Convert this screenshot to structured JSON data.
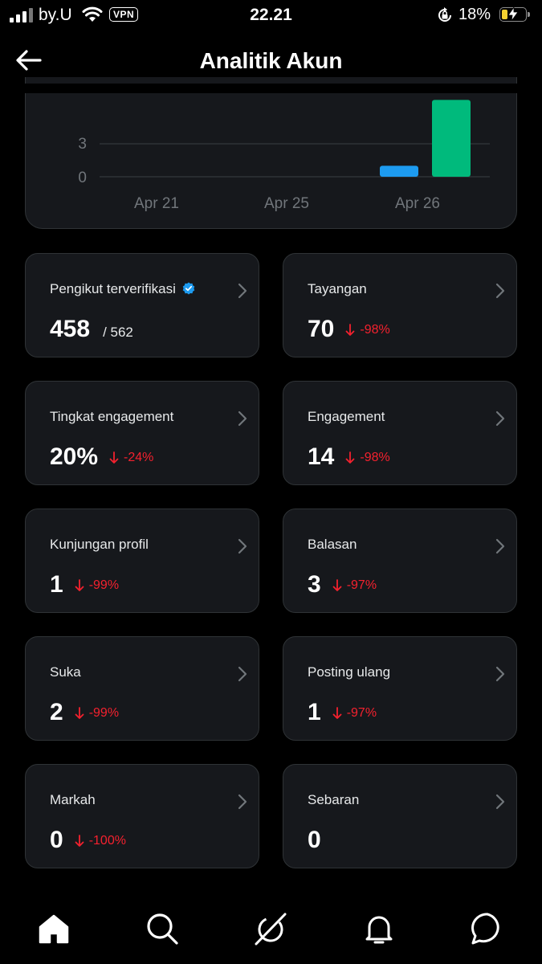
{
  "status_bar": {
    "carrier": "by.U",
    "vpn": "VPN",
    "time": "22.21",
    "battery_percent": "18%",
    "battery_level": 0.18,
    "icons": [
      "signal-icon",
      "wifi-icon",
      "rotation-lock-icon",
      "battery-charging-icon"
    ]
  },
  "header": {
    "title": "Analitik Akun",
    "back_icon": "back-arrow-icon"
  },
  "chart_data": {
    "type": "bar",
    "title": "",
    "xlabel": "",
    "ylabel": "",
    "y_ticks": [
      "3",
      "0"
    ],
    "x_ticks": [
      "Apr 21",
      "Apr 25",
      "Apr 26"
    ],
    "ylim": [
      0,
      7
    ],
    "grid": true,
    "categories": [
      "Apr 26",
      "Apr 26"
    ],
    "values": [
      1,
      7
    ],
    "colors": [
      "#1d9bf0",
      "#00ba7c"
    ]
  },
  "metrics": [
    {
      "label": "Pengikut terverifikasi",
      "value": "458",
      "sub": "/ 562",
      "change": "",
      "verified": true
    },
    {
      "label": "Tayangan",
      "value": "70",
      "sub": "",
      "change": "-98%"
    },
    {
      "label": "Tingkat engagement",
      "value": "20%",
      "sub": "",
      "change": "-24%"
    },
    {
      "label": "Engagement",
      "value": "14",
      "sub": "",
      "change": "-98%"
    },
    {
      "label": "Kunjungan profil",
      "value": "1",
      "sub": "",
      "change": "-99%"
    },
    {
      "label": "Balasan",
      "value": "3",
      "sub": "",
      "change": "-97%"
    },
    {
      "label": "Suka",
      "value": "2",
      "sub": "",
      "change": "-99%"
    },
    {
      "label": "Posting ulang",
      "value": "1",
      "sub": "",
      "change": "-97%"
    },
    {
      "label": "Markah",
      "value": "0",
      "sub": "",
      "change": "-100%"
    },
    {
      "label": "Sebaran",
      "value": "0",
      "sub": "",
      "change": ""
    }
  ],
  "colors": {
    "accent_blue": "#1d9bf0",
    "accent_green": "#00ba7c",
    "negative": "#f4212e",
    "card_bg": "#16181c",
    "border": "#2f3336"
  },
  "nav": {
    "items": [
      {
        "name": "nav-home",
        "icon": "home-icon",
        "active": true
      },
      {
        "name": "nav-search",
        "icon": "search-icon"
      },
      {
        "name": "nav-grok",
        "icon": "grok-icon"
      },
      {
        "name": "nav-notifications",
        "icon": "bell-icon"
      },
      {
        "name": "nav-messages",
        "icon": "message-icon"
      }
    ]
  }
}
